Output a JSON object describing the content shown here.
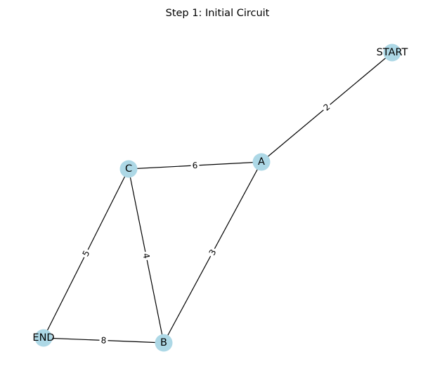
{
  "title": "Step 1: Initial Circuit",
  "colors": {
    "node_fill": "#add8e6",
    "edge": "#000000",
    "background": "#ffffff"
  },
  "nodes": [
    {
      "id": "START",
      "label": "START"
    },
    {
      "id": "A",
      "label": "A"
    },
    {
      "id": "C",
      "label": "C"
    },
    {
      "id": "B",
      "label": "B"
    },
    {
      "id": "END",
      "label": "END"
    }
  ],
  "edges": [
    {
      "from": "START",
      "to": "A",
      "weight": "2"
    },
    {
      "from": "C",
      "to": "A",
      "weight": "6"
    },
    {
      "from": "A",
      "to": "B",
      "weight": "3"
    },
    {
      "from": "C",
      "to": "B",
      "weight": "4"
    },
    {
      "from": "C",
      "to": "END",
      "weight": "5"
    },
    {
      "from": "END",
      "to": "B",
      "weight": "8"
    }
  ]
}
